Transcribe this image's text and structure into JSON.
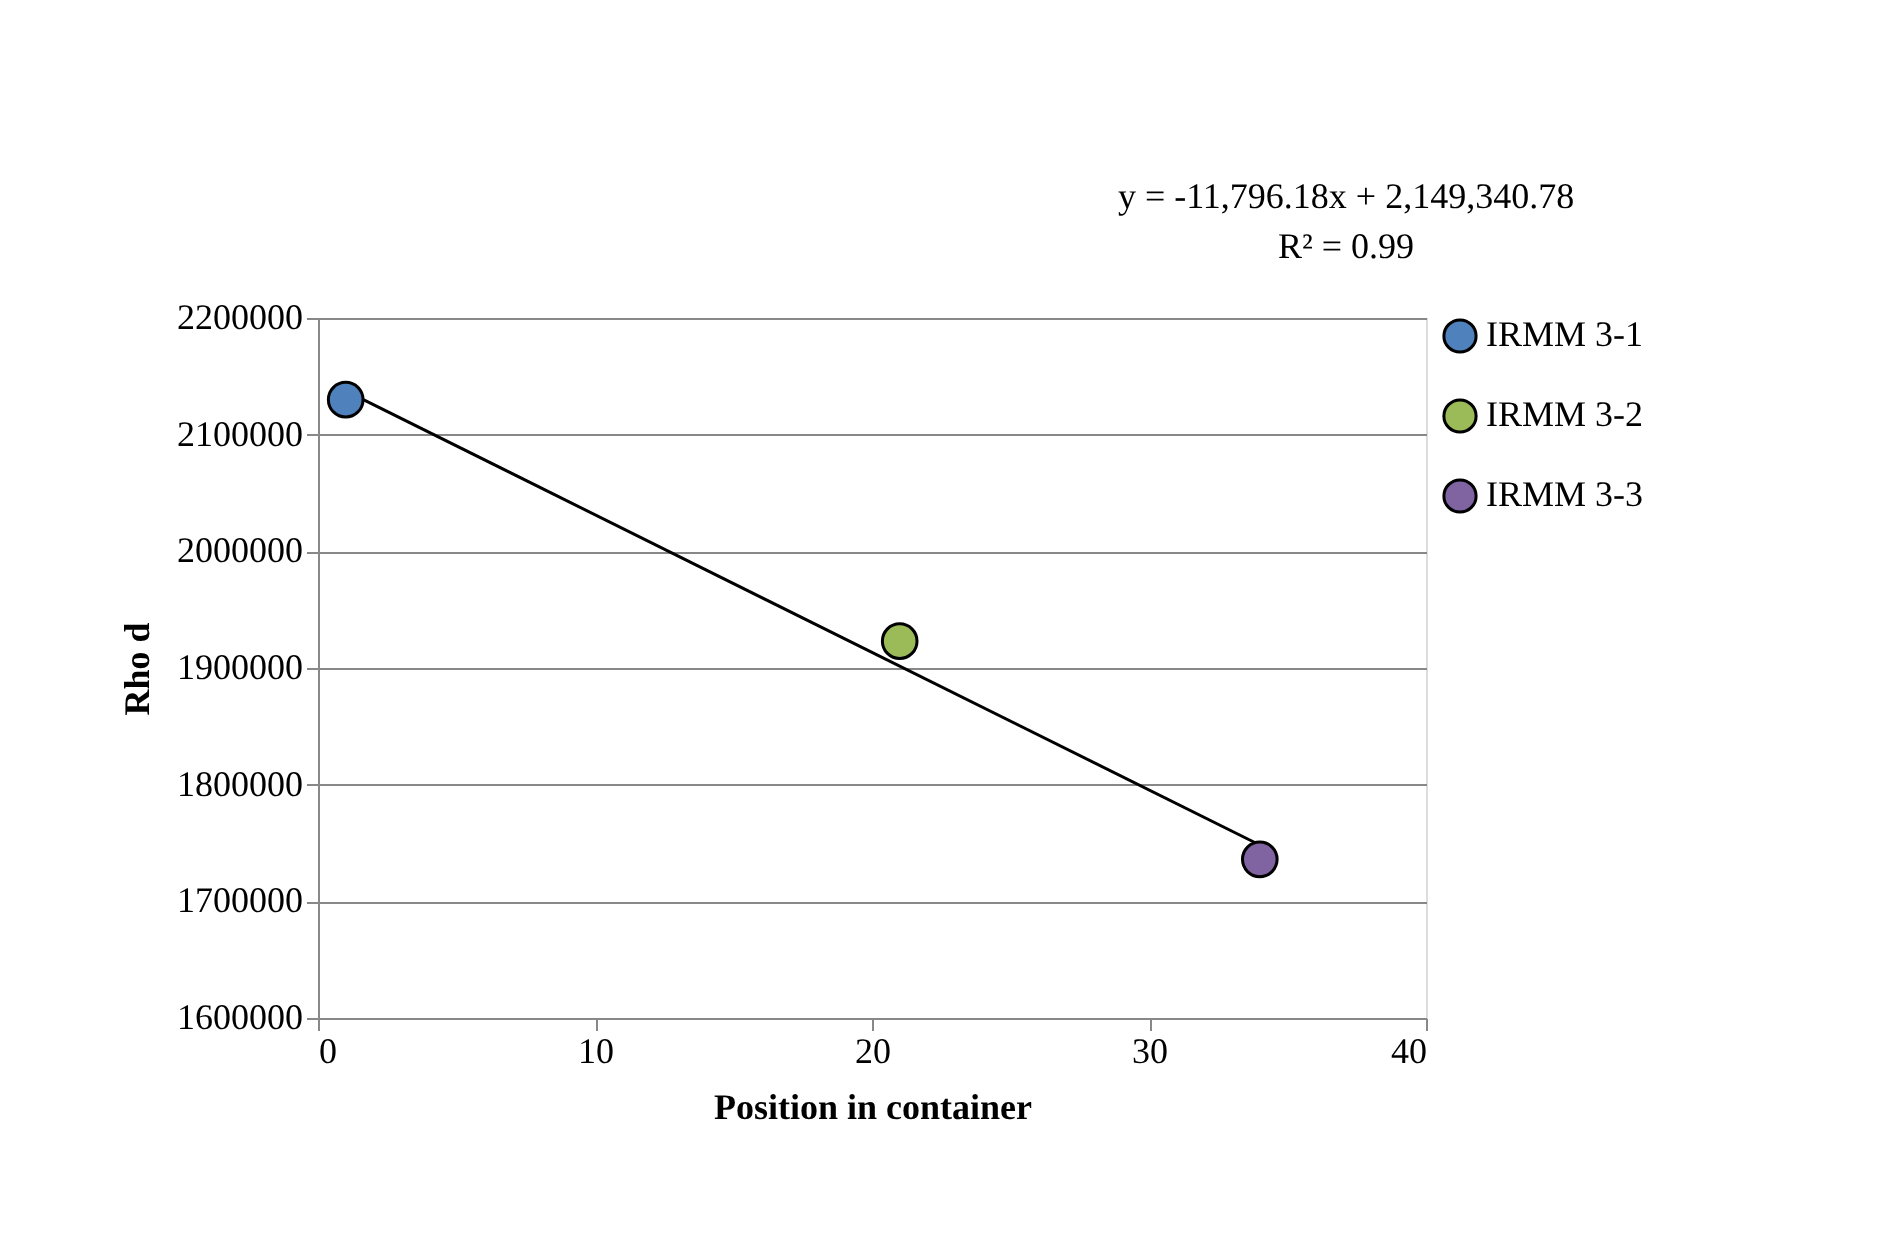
{
  "chart_data": {
    "type": "scatter",
    "xlabel": "Position in container",
    "ylabel": "Rho d",
    "xlim": [
      0,
      40
    ],
    "xticks": [
      0,
      10,
      20,
      30,
      40
    ],
    "ylim": [
      1600000,
      2200000
    ],
    "yticks": [
      1600000,
      1700000,
      1800000,
      1900000,
      2000000,
      2100000,
      2200000
    ],
    "grid": "y",
    "legend": "right",
    "marker": "circle",
    "annotations": [
      "y = -11,796.18x + 2,149,340.78",
      "R² = 0.99"
    ],
    "series": [
      {
        "name": "IRMM 3-1",
        "color": "#4f81bd",
        "x": [
          1
        ],
        "values": [
          2130000
        ]
      },
      {
        "name": "IRMM 3-2",
        "color": "#9bbb59",
        "x": [
          21
        ],
        "values": [
          1923000
        ]
      },
      {
        "name": "IRMM 3-3",
        "color": "#8064a2",
        "x": [
          34
        ],
        "values": [
          1736000
        ]
      },
      {
        "type": "line",
        "color": "#000000",
        "x": [
          1,
          34
        ],
        "values": [
          2137500,
          1748300
        ],
        "line_style": "solid",
        "marker": "none"
      }
    ]
  }
}
